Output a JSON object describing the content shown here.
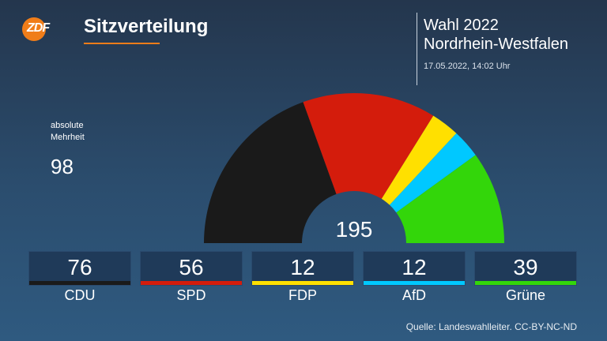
{
  "brand": {
    "logo_text": "ZDF"
  },
  "header": {
    "title": "Sitzverteilung",
    "election_line1": "Wahl 2022",
    "election_line2": "Nordrhein-Westfalen",
    "timestamp": "17.05.2022, 14:02 Uhr"
  },
  "majority": {
    "label_line1": "absolute",
    "label_line2": "Mehrheit",
    "value": "98"
  },
  "total": "195",
  "parties": [
    {
      "name": "CDU",
      "seats": 76,
      "seats_label": "76",
      "color": "#1a1a1a"
    },
    {
      "name": "SPD",
      "seats": 56,
      "seats_label": "56",
      "color": "#d41c0c"
    },
    {
      "name": "FDP",
      "seats": 12,
      "seats_label": "12",
      "color": "#ffe000"
    },
    {
      "name": "AfD",
      "seats": 12,
      "seats_label": "12",
      "color": "#00c8ff"
    },
    {
      "name": "Grüne",
      "seats": 39,
      "seats_label": "39",
      "color": "#33d60a"
    }
  ],
  "chart_data": {
    "type": "pie",
    "subtype": "half-donut",
    "title": "Sitzverteilung",
    "categories": [
      "CDU",
      "SPD",
      "FDP",
      "AfD",
      "Grüne"
    ],
    "values": [
      76,
      56,
      12,
      12,
      39
    ],
    "total": 195,
    "majority": 98,
    "colors": [
      "#1a1a1a",
      "#d41c0c",
      "#ffe000",
      "#00c8ff",
      "#33d60a"
    ]
  },
  "source": "Quelle: Landeswahlleiter. CC-BY-NC-ND"
}
